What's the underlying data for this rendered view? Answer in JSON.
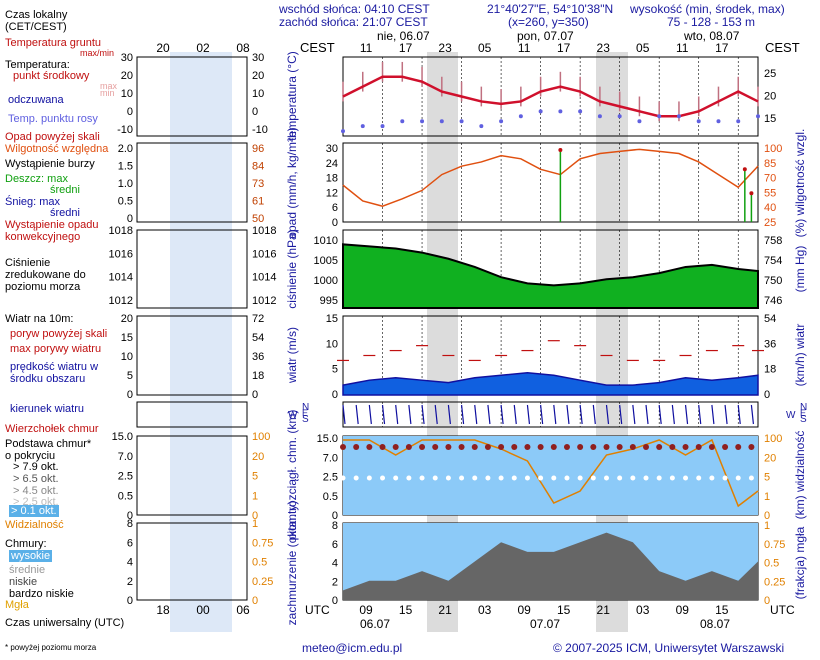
{
  "header": {
    "sunrise": "wschód słońca: 04:10 CEST",
    "sunset": "zachód słońca: 21:07 CEST",
    "coords": "21°40'27\"E, 54°10'38\"N",
    "grid": "(x=260, y=350)",
    "height_title": "wysokość (min, środek, max)",
    "height_values": "75 - 128 - 153 m"
  },
  "time": {
    "tz_local": "CEST",
    "tz_utc": "UTC",
    "top_hours": [
      "11",
      "17",
      "23",
      "05",
      "11",
      "17",
      "23",
      "05",
      "11",
      "17"
    ],
    "day_labels_top": [
      "nie, 06.07",
      "pon, 07.07",
      "wto, 08.07"
    ],
    "bottom_hours": [
      "09",
      "15",
      "21",
      "03",
      "09",
      "15",
      "21",
      "03",
      "09",
      "15"
    ],
    "day_labels_bottom": [
      "06.07",
      "07.07",
      "08.07"
    ]
  },
  "legend": {
    "local_time": "Czas lokalny (CET/CEST)",
    "local_ticks": [
      "20",
      "02",
      "08"
    ],
    "utc_time": "Czas uniwersalny (UTC)",
    "utc_ticks": [
      "18",
      "00",
      "06"
    ],
    "ground_temp": "Temperatura gruntu",
    "max_min": "max/min",
    "temperature": "Temperatura:",
    "mid_point": "punkt środkowy",
    "max": "max",
    "min": "min",
    "feels": "odczuwana",
    "dew": "Temp. punktu rosy",
    "precip_over": "Opad powyżej skali",
    "rel_hum": "Wilgotność względna",
    "storm": "Wystąpienie burzy",
    "rain_max": "Deszcz: max",
    "rain_mid": "średni",
    "snow_max": "Śnieg: max",
    "snow_mid": "średni",
    "conv": "Wystąpienie opadu konwekcyjnego",
    "pressure": "Ciśnienie zredukowane do poziomu morza",
    "wind_hdr": "Wiatr na 10m:",
    "gust_over": "poryw powyżej skali",
    "max_gust": "max porywy wiatru",
    "wind_speed": "prędkość wiatru w środku obszaru",
    "wind_dir": "kierunek wiatru",
    "cloud_top": "Wierzchołek chmur",
    "cloud_base": "Podstawa chmur* o pokryciu",
    "okt": [
      "> 7.9 okt.",
      "> 6.5 okt.",
      "> 4.5 okt.",
      "> 2.5 okt.",
      "> 0.1 okt."
    ],
    "visibility": "Widzialność",
    "clouds": "Chmury:",
    "cl_high": "wysokie",
    "cl_mid": "średnie",
    "cl_low": "niskie",
    "cl_vlow": "bardzo niskie",
    "fog": "Mgła",
    "footnote": "* powyżej poziomu morza",
    "lt_temp_left": [
      "30",
      "20",
      "10",
      "0",
      "-10"
    ],
    "lt_temp_right": [
      "30",
      "20",
      "10",
      "0",
      "-10"
    ],
    "lt_prec_left": [
      "2.0",
      "1.5",
      "1.0",
      "0.5",
      "0"
    ],
    "lt_prec_right": [
      "96",
      "84",
      "73",
      "61",
      "50"
    ],
    "lt_pres_left": [
      "1018",
      "1016",
      "1014",
      "1012"
    ],
    "lt_pres_right": [
      "1018",
      "1016",
      "1014",
      "1012"
    ],
    "lt_wind_left": [
      "20",
      "15",
      "10",
      "5",
      "0"
    ],
    "lt_wind_right": [
      "72",
      "54",
      "36",
      "18",
      "0"
    ],
    "lt_cb_left": [
      "15.0",
      "7.0",
      "2.5",
      "0.5",
      "0"
    ],
    "lt_cb_right": [
      "100",
      "20",
      "5",
      "1",
      "0"
    ],
    "lt_cl_left": [
      "8",
      "6",
      "4",
      "2",
      "0"
    ],
    "lt_cl_right": [
      "1",
      "0.75",
      "0.5",
      "0.25",
      "0"
    ]
  },
  "axes": {
    "temp_label": "temperatura (°C)",
    "temp_ticks": [
      "25",
      "20",
      "15"
    ],
    "prec_label": "opad (mm/h, kg/m²h)",
    "prec_ticks": [
      "30",
      "24",
      "18",
      "12",
      "6",
      "0"
    ],
    "hum_label": "(%) wilgotność wzgl.",
    "hum_ticks": [
      "100",
      "85",
      "70",
      "55",
      "40",
      "25"
    ],
    "pres_label": "ciśnienie (hPa)",
    "pres_ticks": [
      "1010",
      "1005",
      "1000",
      "995"
    ],
    "pres_mm_label": "(mm Hg)",
    "pres_mm_ticks": [
      "758",
      "754",
      "750",
      "746"
    ],
    "wind_label": "wiatr (m/s)",
    "wind_ticks": [
      "15",
      "10",
      "5",
      "0"
    ],
    "wind_kmh_label": "(km/h) wiatr",
    "wind_kmh_ticks": [
      "54",
      "36",
      "18",
      "0"
    ],
    "cbase_label": "pion. rozciągł. chm. (km)",
    "cbase_ticks": [
      "15.0",
      "7.0",
      "2.5",
      "0.5",
      "0"
    ],
    "vis_label": "(km) widzialność",
    "vis_ticks": [
      "100",
      "20",
      "5",
      "1",
      "0"
    ],
    "cover_label": "zachmurzenie (oktanty)",
    "cover_ticks": [
      "8",
      "6",
      "4",
      "2",
      "0"
    ],
    "fog_label": "(frakcja) mgła",
    "fog_ticks": [
      "1",
      "0.75",
      "0.5",
      "0.25",
      "0"
    ],
    "compass_n": "N",
    "compass_s": "S",
    "compass_w": "W",
    "compass_e": "E"
  },
  "footer": {
    "email": "meteo@icm.edu.pl",
    "copyright": "© 2007-2025 ICM, Uniwersytet Warszawski"
  },
  "colors": {
    "temp": "#d0102c",
    "dew": "#6060e0",
    "humidity": "#e05010",
    "pressure_fill": "#10b020",
    "wind_fill": "#1060e0",
    "sky": "#8ccaf8",
    "night": "#dcdcdc"
  },
  "chart_data": [
    {
      "type": "line",
      "panel": "temperature",
      "ylabel": "temperatura (°C)",
      "ylim": [
        12,
        28
      ],
      "x_hours_from_start": [
        0,
        3,
        6,
        9,
        12,
        15,
        18,
        21,
        24,
        27,
        30,
        33,
        36,
        39,
        42,
        45,
        48,
        51,
        54,
        57,
        60,
        63
      ],
      "series": [
        {
          "values": [
            20,
            22,
            24,
            24,
            23,
            21,
            20,
            19,
            18.5,
            19,
            21,
            22,
            21,
            19,
            18,
            17,
            16,
            16,
            17,
            19,
            21,
            19
          ]
        }
      ],
      "dew_point": [
        13,
        14,
        14,
        15,
        15,
        15,
        15,
        14,
        15,
        16,
        17,
        17,
        17,
        16,
        16,
        15,
        16,
        16,
        15,
        15,
        15,
        16
      ]
    },
    {
      "type": "line",
      "panel": "humidity",
      "ylabel": "wilgotność wzgl. (%)",
      "ylim": [
        25,
        100
      ],
      "x_hours_from_start": [
        0,
        3,
        6,
        9,
        12,
        15,
        18,
        21,
        24,
        27,
        30,
        33,
        36,
        39,
        42,
        45,
        48,
        51,
        54,
        57,
        60,
        63
      ],
      "values": [
        60,
        45,
        40,
        47,
        55,
        70,
        78,
        82,
        88,
        85,
        75,
        70,
        85,
        90,
        92,
        94,
        92,
        90,
        82,
        70,
        58,
        78
      ]
    },
    {
      "type": "area",
      "panel": "pressure",
      "ylabel": "ciśnienie (hPa)",
      "ylim": [
        993,
        1012
      ],
      "x_hours_from_start": [
        0,
        4,
        8,
        12,
        16,
        20,
        24,
        28,
        32,
        36,
        40,
        44,
        48,
        52,
        56,
        60,
        63
      ],
      "values": [
        1008.5,
        1008,
        1007.5,
        1006.5,
        1005,
        1003,
        1000.5,
        999,
        998.5,
        999,
        1000,
        1000.5,
        1001.5,
        1003,
        1003.5,
        1002.5,
        1002
      ]
    },
    {
      "type": "area",
      "panel": "wind",
      "ylabel": "wiatr (m/s)",
      "ylim": [
        0,
        16
      ],
      "x_hours_from_start": [
        0,
        4,
        8,
        12,
        16,
        20,
        24,
        28,
        32,
        36,
        40,
        44,
        48,
        52,
        56,
        60,
        63
      ],
      "values": [
        2,
        3,
        3.5,
        3,
        2.5,
        3.5,
        4,
        4.5,
        4,
        3,
        2,
        2,
        2.5,
        3.5,
        3,
        3.5,
        4
      ],
      "gusts": [
        7,
        8,
        9,
        10,
        8,
        7,
        8,
        9,
        11,
        10,
        8,
        7,
        7,
        8,
        9,
        10,
        9
      ]
    },
    {
      "type": "line",
      "panel": "visibility",
      "ylabel": "widzialność (km)",
      "ylim": [
        0,
        100
      ],
      "x_hours_from_start": [
        0,
        4,
        8,
        12,
        16,
        20,
        24,
        28,
        32,
        36,
        40,
        44,
        48,
        52,
        56,
        60,
        63
      ],
      "values": [
        25,
        25,
        20,
        25,
        25,
        25,
        22,
        18,
        4,
        8,
        20,
        22,
        25,
        20,
        25,
        3,
        8
      ]
    },
    {
      "type": "area",
      "panel": "clouds",
      "ylabel": "zachmurzenie (oktanty)",
      "ylim": [
        0,
        8
      ],
      "x_hours_from_start": [
        0,
        4,
        8,
        12,
        16,
        20,
        24,
        28,
        32,
        36,
        40,
        44,
        48,
        52,
        56,
        60,
        63
      ],
      "values": [
        1,
        2,
        2,
        3,
        2,
        4,
        6,
        5,
        5,
        6,
        7,
        6,
        3,
        2,
        3,
        2,
        4
      ]
    }
  ]
}
